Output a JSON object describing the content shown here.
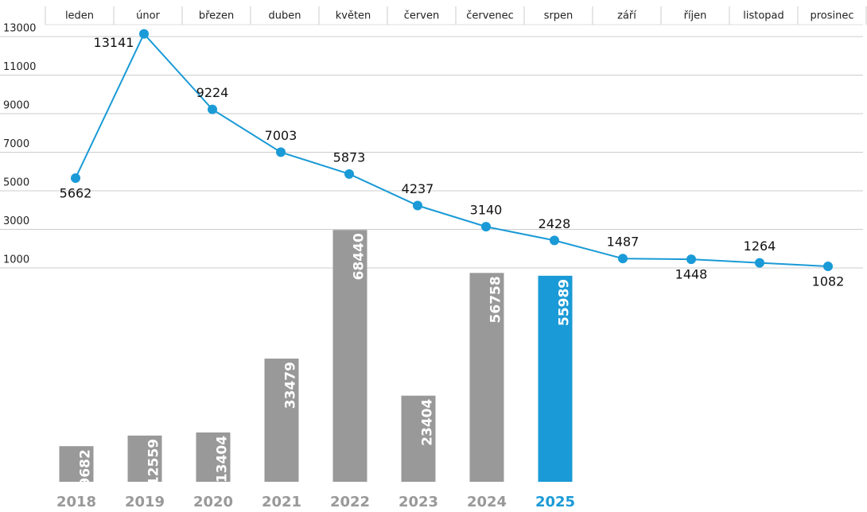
{
  "chart_data": [
    {
      "type": "line",
      "categories": [
        "leden",
        "únor",
        "březen",
        "duben",
        "květen",
        "červen",
        "červenec",
        "srpen",
        "září",
        "říjen",
        "listopad",
        "prosinec"
      ],
      "values": [
        5662,
        13141,
        9224,
        7003,
        5873,
        4237,
        3140,
        2428,
        1487,
        1448,
        1264,
        1082
      ],
      "color": "#1a9ad6",
      "ylim": [
        1000,
        13000
      ],
      "yticks": [
        1000,
        3000,
        5000,
        7000,
        9000,
        11000,
        13000
      ],
      "grid": true
    },
    {
      "type": "bar",
      "categories": [
        "2018",
        "2019",
        "2020",
        "2021",
        "2022",
        "2023",
        "2024",
        "2025"
      ],
      "values": [
        9682,
        12559,
        13404,
        33479,
        68440,
        23404,
        56758,
        55989
      ],
      "colors": [
        "#999999",
        "#999999",
        "#999999",
        "#999999",
        "#999999",
        "#999999",
        "#999999",
        "#1a9ad6"
      ],
      "ylim": [
        0,
        70000
      ]
    }
  ]
}
